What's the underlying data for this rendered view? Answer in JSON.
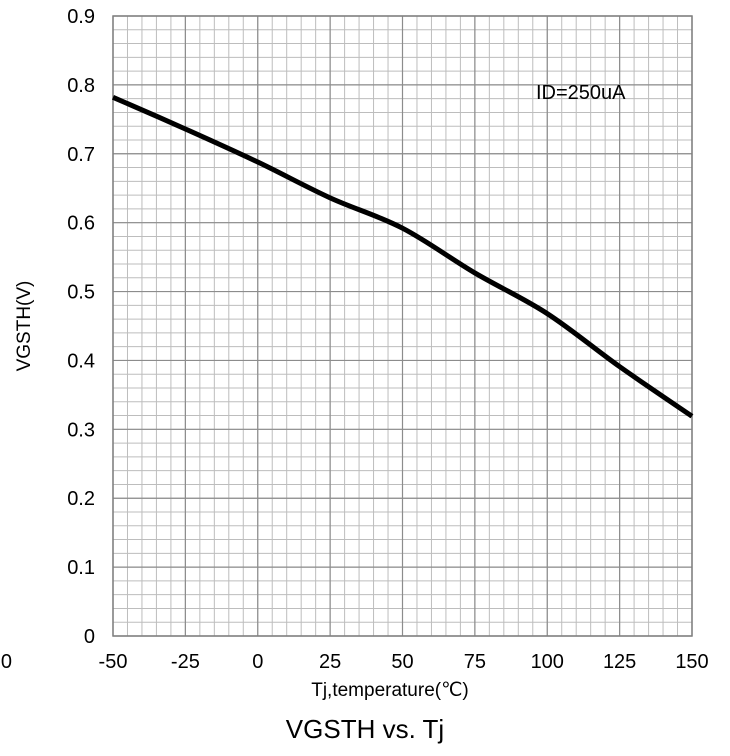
{
  "caption": "VGSTH vs. Tj",
  "chart_data": {
    "type": "line",
    "xlabel": "Tj,temperature(℃)",
    "ylabel": "VGSTH(V)",
    "xlim": [
      -50,
      150
    ],
    "ylim": [
      0,
      0.9
    ],
    "x_ticks": [
      "-50",
      "-25",
      "0",
      "25",
      "50",
      "75",
      "100",
      "125",
      "150"
    ],
    "y_ticks": [
      "0",
      "0.1",
      "0.2",
      "0.3",
      "0.4",
      "0.5",
      "0.6",
      "0.7",
      "0.8",
      "0.9"
    ],
    "stray_tick_label": "0",
    "annotation": "ID=250uA",
    "grid": true,
    "series": [
      {
        "color": "#000000",
        "x": [
          -50,
          -25,
          0,
          25,
          50,
          75,
          100,
          125,
          150
        ],
        "y": [
          0.782,
          0.736,
          0.688,
          0.636,
          0.592,
          0.527,
          0.468,
          0.391,
          0.319
        ]
      }
    ]
  }
}
